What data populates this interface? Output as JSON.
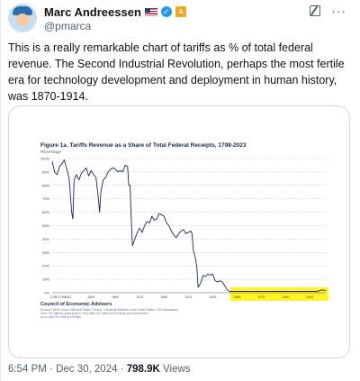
{
  "author": {
    "display_name": "Marc Andreessen",
    "handle": "@pmarca"
  },
  "tweet": {
    "text": "This is a really remarkable chart of tariffs as % of total federal revenue. The Second Industrial Revolution, perhaps the most fertile era for technology development and deployment in human history, was 1870-1914.",
    "time": "6:54 PM",
    "date": "Dec 30, 2024",
    "separator": "·",
    "views_count": "798.9K",
    "views_label": "Views"
  },
  "icons": {
    "flag": "us-flag-icon",
    "verified": "verified-badge-icon",
    "affiliation": "affiliation-badge-icon",
    "grok": "grok-icon",
    "more": "more-icon"
  },
  "colors": {
    "verified": "#1d9bf0",
    "line": "#1a2a4a",
    "highlight": "#fff200",
    "link_border": "#cfd9de"
  },
  "chart_data": {
    "type": "line",
    "title": "Figure 1a. Tariffs Revenue as a Share of Total Federal Receipts, 1798-2023",
    "ylabel": "Percentage",
    "xlabel": "",
    "xlim": [
      1798,
      2023
    ],
    "ylim": [
      0,
      100
    ],
    "x_ticks": [
      1798,
      1811,
      1830,
      1850,
      1870,
      1890,
      1910,
      1930,
      1950,
      1970,
      1990,
      2010
    ],
    "x_tick_labels": [
      "1798 1799",
      "1811",
      "1830",
      "1850",
      "1870",
      "1890",
      "1910",
      "1930",
      "1950",
      "1970",
      "1990",
      "2010"
    ],
    "y_ticks": [
      0,
      10,
      20,
      30,
      40,
      50,
      60,
      70,
      80,
      90,
      100
    ],
    "y_tick_labels": [
      "0%",
      "10%",
      "20%",
      "30%",
      "40%",
      "50%",
      "60%",
      "70%",
      "80%",
      "90%",
      "100%"
    ],
    "grid": true,
    "highlight_range": [
      1945,
      2023
    ],
    "series": [
      {
        "x": [
          1798,
          1800,
          1802,
          1804,
          1806,
          1808,
          1810,
          1812,
          1813,
          1814,
          1815,
          1816,
          1818,
          1820,
          1822,
          1824,
          1826,
          1828,
          1830,
          1832,
          1834,
          1836,
          1837,
          1838,
          1840,
          1842,
          1844,
          1846,
          1848,
          1850,
          1852,
          1854,
          1856,
          1858,
          1860,
          1861,
          1862,
          1863,
          1864,
          1866,
          1868,
          1870,
          1872,
          1874,
          1876,
          1878,
          1880,
          1882,
          1884,
          1886,
          1888,
          1890,
          1892,
          1894,
          1896,
          1898,
          1900,
          1902,
          1904,
          1906,
          1908,
          1910,
          1912,
          1913,
          1914,
          1916,
          1917,
          1918,
          1920,
          1922,
          1924,
          1926,
          1928,
          1930,
          1932,
          1934,
          1936,
          1938,
          1940,
          1942,
          1944,
          1946,
          1950,
          1955,
          1960,
          1965,
          1970,
          1975,
          1980,
          1985,
          1990,
          1995,
          2000,
          2005,
          2010,
          2015,
          2018,
          2019,
          2020,
          2021,
          2022,
          2023
        ],
        "y": [
          98,
          90,
          88,
          94,
          96,
          99,
          92,
          85,
          72,
          60,
          55,
          84,
          88,
          84,
          89,
          91,
          93,
          87,
          91,
          88,
          86,
          70,
          60,
          75,
          84,
          86,
          90,
          92,
          93,
          92,
          90,
          91,
          90,
          95,
          94,
          80,
          80,
          55,
          35,
          40,
          45,
          48,
          45,
          50,
          53,
          52,
          57,
          54,
          55,
          59,
          58,
          57,
          52,
          50,
          46,
          43,
          41,
          44,
          46,
          47,
          44,
          45,
          46,
          44,
          32,
          25,
          18,
          4,
          7,
          13,
          12,
          14,
          13,
          14,
          9,
          8,
          9,
          8,
          5,
          2,
          1,
          1,
          1,
          1,
          1,
          1,
          1,
          1,
          1,
          1,
          1,
          1,
          1,
          1,
          1,
          1,
          1.5,
          2,
          2,
          2,
          1.8,
          1.8
        ]
      }
    ],
    "footer_title": "Council of Economic Advisers",
    "footer_source": "Sources: White House Historical Tables; Census - Historical Statistics of the United States; CEA calculations.",
    "footer_note": "Note: The data for years prior to 1940 does not match current fiscal year conventions.",
    "footer_asof": "As of June 29, 2024 at 12:00pm."
  }
}
